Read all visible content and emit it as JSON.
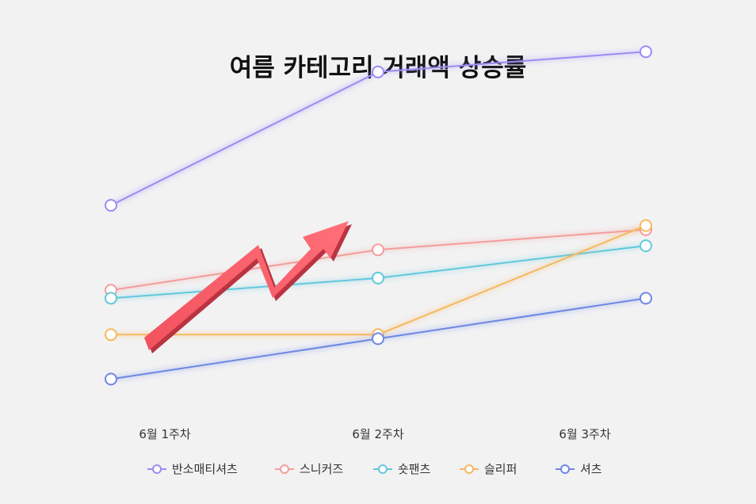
{
  "chart_data": {
    "type": "line",
    "title": "여름 카테고리 거래액 상승률",
    "xlabel": "",
    "ylabel": "",
    "categories": [
      "6월 1주차",
      "6월 2주차",
      "6월 3주차"
    ],
    "ylim": [
      0,
      100
    ],
    "grid": false,
    "legend_position": "bottom",
    "y_axis_visible": false,
    "series": [
      {
        "name": "반소매티셔츠",
        "color": "#9b8cf3",
        "values": [
          59,
          92,
          97
        ]
      },
      {
        "name": "스니커즈",
        "color": "#f39d9a",
        "values": [
          38,
          48,
          53
        ]
      },
      {
        "name": "숏팬츠",
        "color": "#62c8dc",
        "values": [
          36,
          41,
          49
        ]
      },
      {
        "name": "슬리퍼",
        "color": "#f6b85e",
        "values": [
          27,
          27,
          54
        ]
      },
      {
        "name": "셔츠",
        "color": "#6f86e3",
        "values": [
          16,
          26,
          36
        ]
      }
    ],
    "decoration": {
      "arrow-icon": "rising-zigzag-arrow",
      "color": "#f25a63"
    }
  }
}
